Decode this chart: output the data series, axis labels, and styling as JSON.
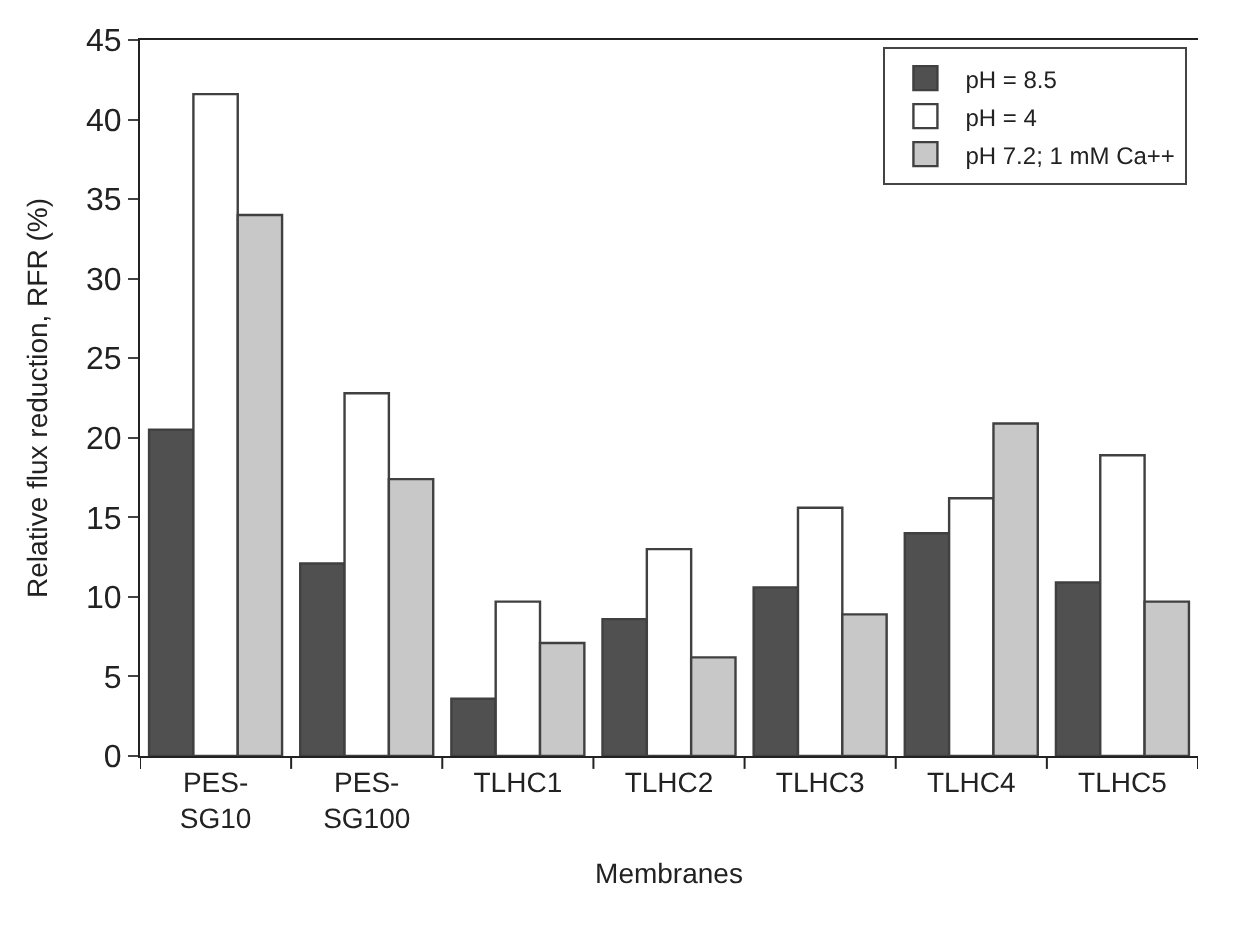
{
  "chart_data": {
    "type": "bar",
    "xlabel": "Membranes",
    "ylabel": "Relative flux reduction, RFR (%)",
    "categories": [
      "PES-SG10",
      "PES-SG100",
      "TLHC1",
      "TLHC2",
      "TLHC3",
      "TLHC4",
      "TLHC5"
    ],
    "series": [
      {
        "name": "pH = 8.5",
        "color": "#505050",
        "values": [
          20.5,
          12.1,
          3.6,
          8.6,
          10.6,
          14.0,
          10.9
        ]
      },
      {
        "name": "pH = 4",
        "color": "#ffffff",
        "values": [
          41.6,
          22.8,
          9.7,
          13.0,
          15.6,
          16.2,
          18.9
        ]
      },
      {
        "name": "pH 7.2; 1 mM Ca++",
        "color": "#c8c8c8",
        "values": [
          34.0,
          17.4,
          7.1,
          6.2,
          8.9,
          20.9,
          9.7
        ]
      }
    ],
    "ylim": [
      0,
      45
    ],
    "yticks": [
      0,
      5,
      10,
      15,
      20,
      25,
      30,
      35,
      40,
      45
    ],
    "legend": "top right"
  }
}
